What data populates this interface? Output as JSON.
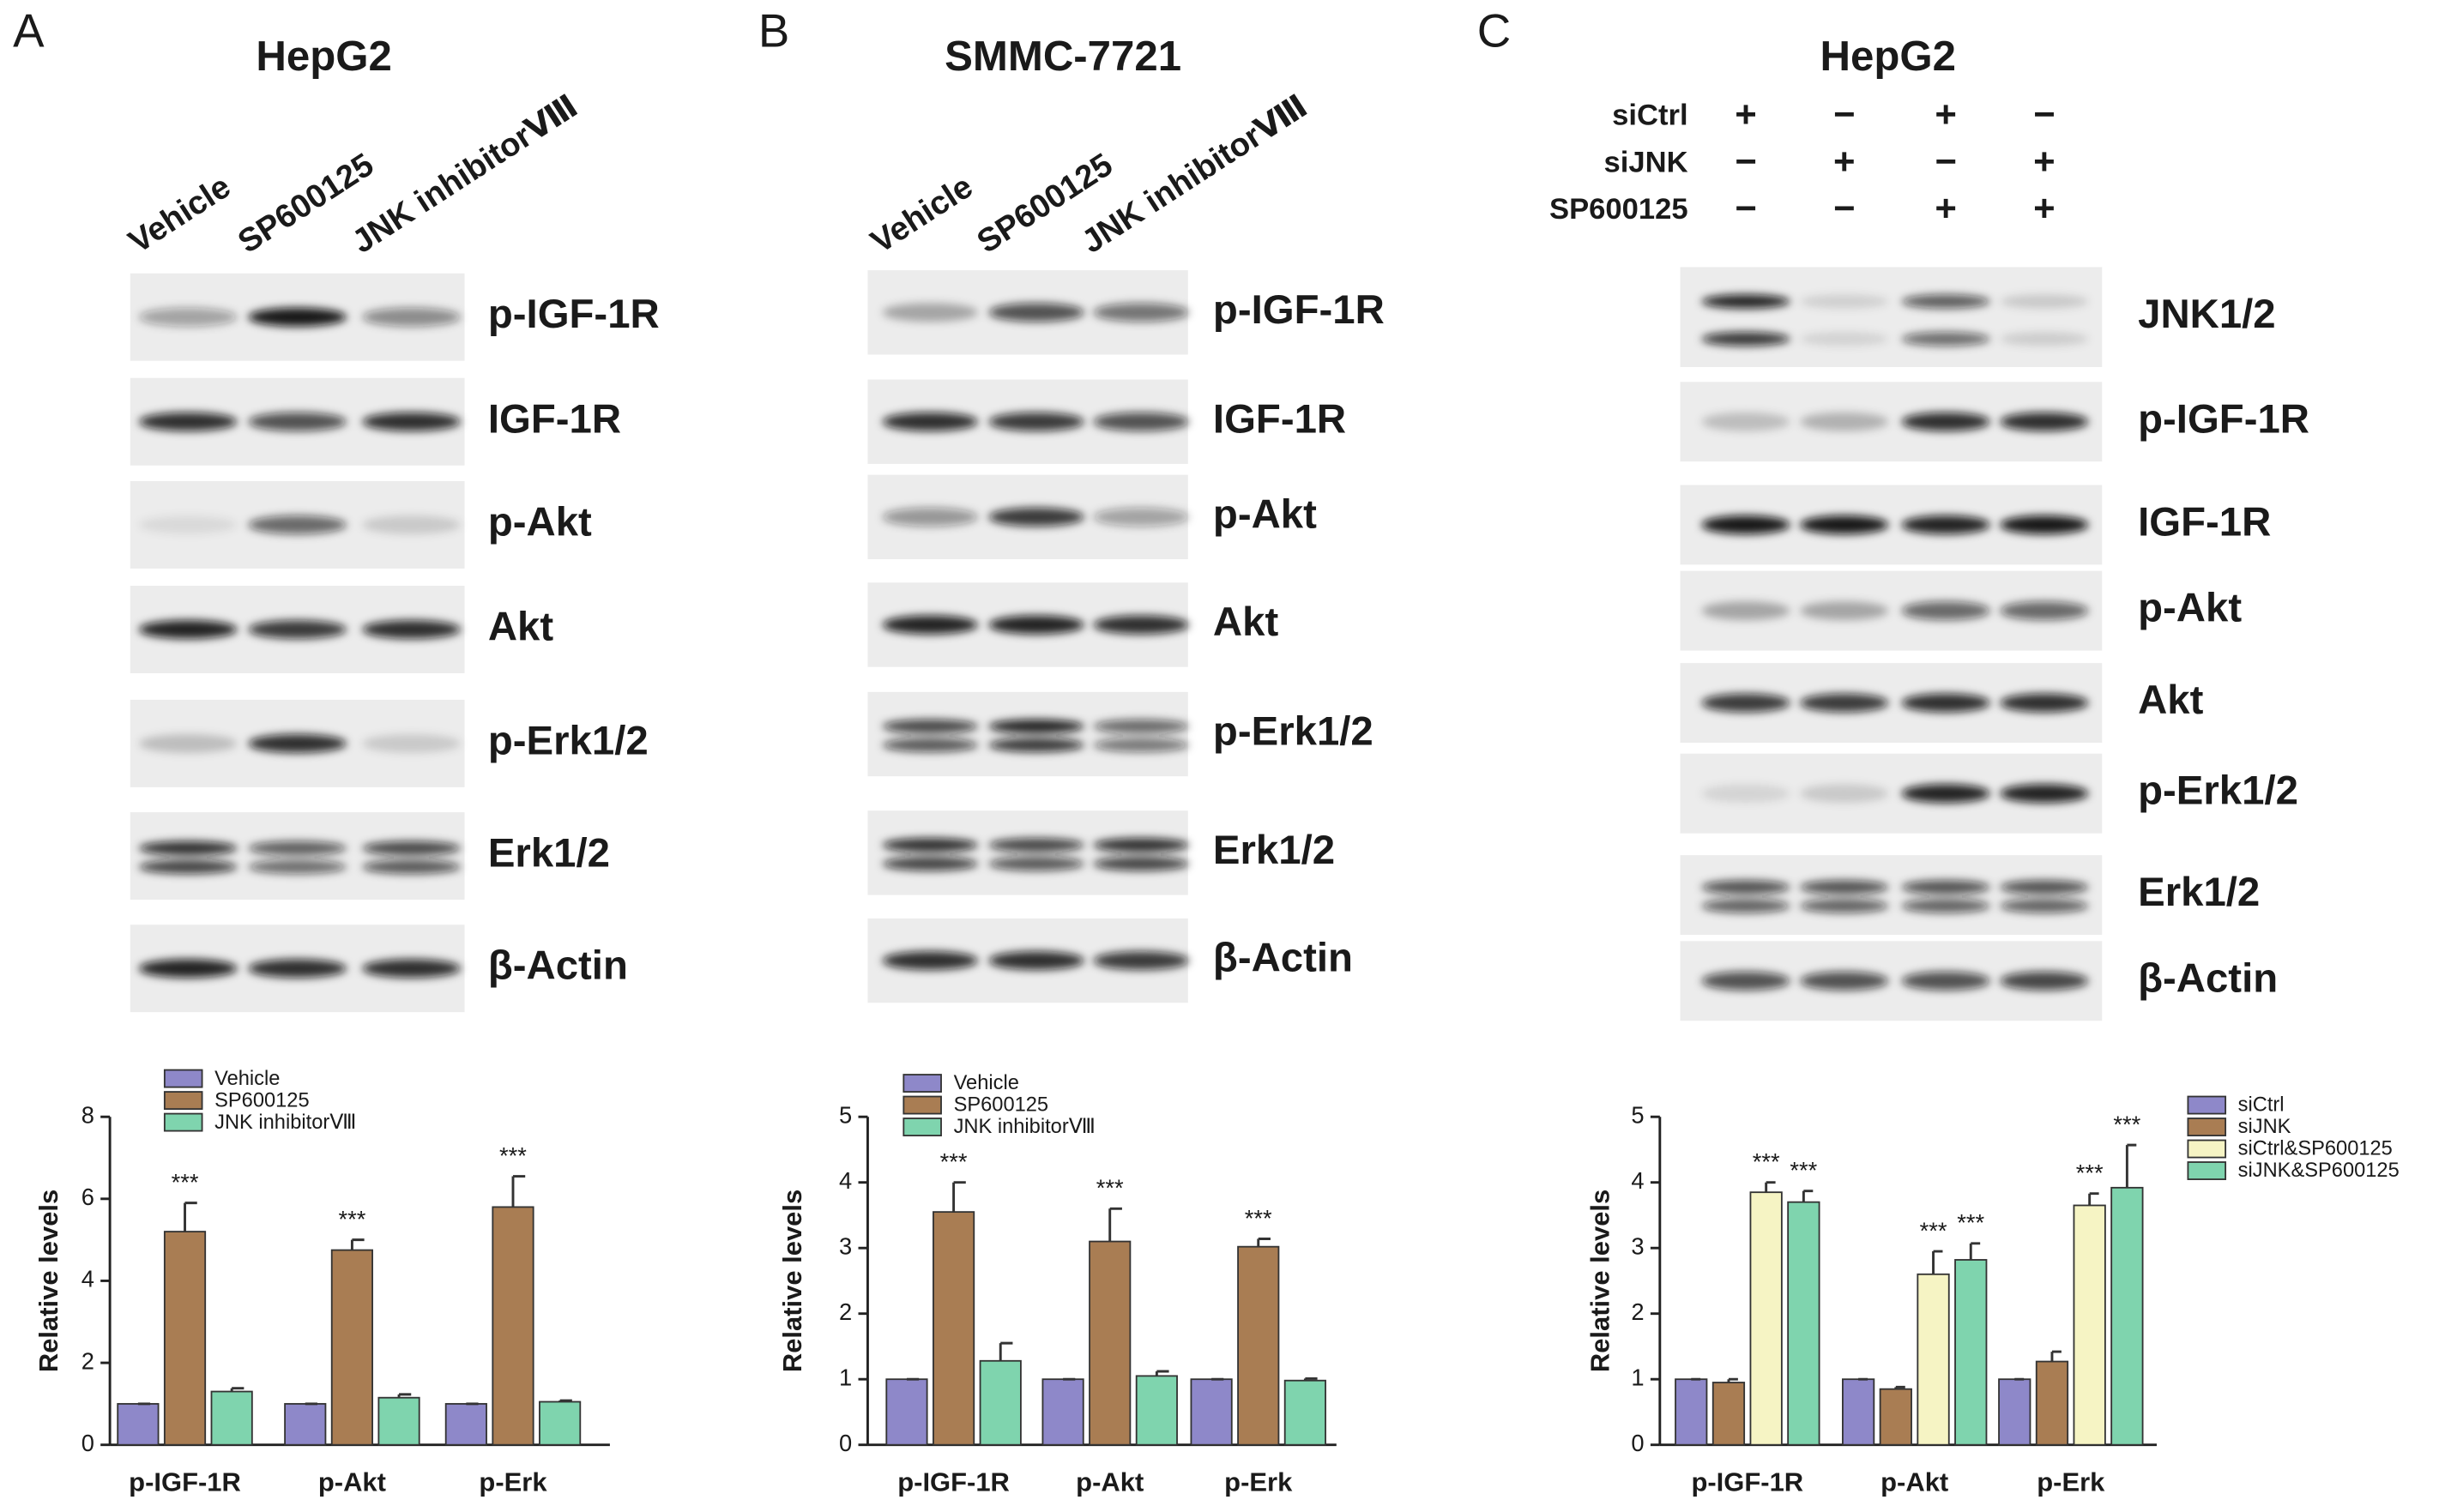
{
  "panels": [
    {
      "letter": "A",
      "title": "HepG2",
      "lanes": [
        "Vehicle",
        "SP600125",
        "JNK inhibitorⅧ"
      ],
      "blots": [
        "p-IGF-1R",
        "IGF-1R",
        "p-Akt",
        "Akt",
        "p-Erk1/2",
        "Erk1/2",
        "β-Actin"
      ]
    },
    {
      "letter": "B",
      "title": "SMMC-7721",
      "lanes": [
        "Vehicle",
        "SP600125",
        "JNK inhibitorⅧ"
      ],
      "blots": [
        "p-IGF-1R",
        "IGF-1R",
        "p-Akt",
        "Akt",
        "p-Erk1/2",
        "Erk1/2",
        "β-Actin"
      ]
    },
    {
      "letter": "C",
      "title": "HepG2",
      "conditions": [
        {
          "label": "siCtrl",
          "signs": [
            "+",
            "−",
            "+",
            "−"
          ]
        },
        {
          "label": "siJNK",
          "signs": [
            "−",
            "+",
            "−",
            "+"
          ]
        },
        {
          "label": "SP600125",
          "signs": [
            "−",
            "−",
            "+",
            "+"
          ]
        }
      ],
      "blots": [
        "JNK1/2",
        "p-IGF-1R",
        "IGF-1R",
        "p-Akt",
        "Akt",
        "p-Erk1/2",
        "Erk1/2",
        "β-Actin"
      ]
    }
  ],
  "chart_data": [
    {
      "type": "bar",
      "ylabel": "Relative  levels",
      "categories": [
        "p-IGF-1R",
        "p-Akt",
        "p-Erk"
      ],
      "ylim": [
        0,
        8
      ],
      "yticks": [
        0,
        2,
        4,
        6,
        8
      ],
      "series": [
        {
          "name": "Vehicle",
          "color": "#8e88c9",
          "values": [
            1,
            1,
            1
          ],
          "errors": [
            0,
            0,
            0
          ]
        },
        {
          "name": "SP600125",
          "color": "#a97d53",
          "values": [
            5.2,
            4.75,
            5.8
          ],
          "errors": [
            0.7,
            0.25,
            0.75
          ],
          "significance": [
            "***",
            "***",
            "***"
          ]
        },
        {
          "name": "JNK inhibitorⅧ",
          "color": "#7fd4ae",
          "values": [
            1.3,
            1.15,
            1.05
          ],
          "errors": [
            0.08,
            0.08,
            0.03
          ]
        }
      ]
    },
    {
      "type": "bar",
      "ylabel": "Relative  levels",
      "categories": [
        "p-IGF-1R",
        "p-Akt",
        "p-Erk"
      ],
      "ylim": [
        0,
        5
      ],
      "yticks": [
        0,
        1,
        2,
        3,
        4,
        5
      ],
      "series": [
        {
          "name": "Vehicle",
          "color": "#8e88c9",
          "values": [
            1,
            1,
            1
          ],
          "errors": [
            0,
            0,
            0
          ]
        },
        {
          "name": "SP600125",
          "color": "#a97d53",
          "values": [
            3.55,
            3.1,
            3.02
          ],
          "errors": [
            0.45,
            0.5,
            0.12
          ],
          "significance": [
            "***",
            "***",
            "***"
          ]
        },
        {
          "name": "JNK inhibitorⅧ",
          "color": "#7fd4ae",
          "values": [
            1.28,
            1.05,
            0.98
          ],
          "errors": [
            0.27,
            0.07,
            0.03
          ]
        }
      ]
    },
    {
      "type": "bar",
      "ylabel": "Relative  levels",
      "categories": [
        "p-IGF-1R",
        "p-Akt",
        "p-Erk"
      ],
      "ylim": [
        0,
        5
      ],
      "yticks": [
        0,
        1,
        2,
        3,
        4,
        5
      ],
      "series": [
        {
          "name": "siCtrl",
          "color": "#8e88c9",
          "values": [
            1,
            1,
            1
          ],
          "errors": [
            0,
            0,
            0
          ]
        },
        {
          "name": "siJNK",
          "color": "#a97d53",
          "values": [
            0.95,
            0.85,
            1.27
          ],
          "errors": [
            0.05,
            0.03,
            0.15
          ]
        },
        {
          "name": "siCtrl&SP600125",
          "color": "#f6f4c4",
          "values": [
            3.85,
            2.6,
            3.65
          ],
          "errors": [
            0.15,
            0.35,
            0.18
          ],
          "significance": [
            "***",
            "***",
            "***"
          ]
        },
        {
          "name": "siJNK&SP600125",
          "color": "#7fd4ae",
          "values": [
            3.7,
            2.82,
            3.92
          ],
          "errors": [
            0.17,
            0.25,
            0.65
          ],
          "significance": [
            "***",
            "***",
            "***"
          ]
        }
      ]
    }
  ]
}
